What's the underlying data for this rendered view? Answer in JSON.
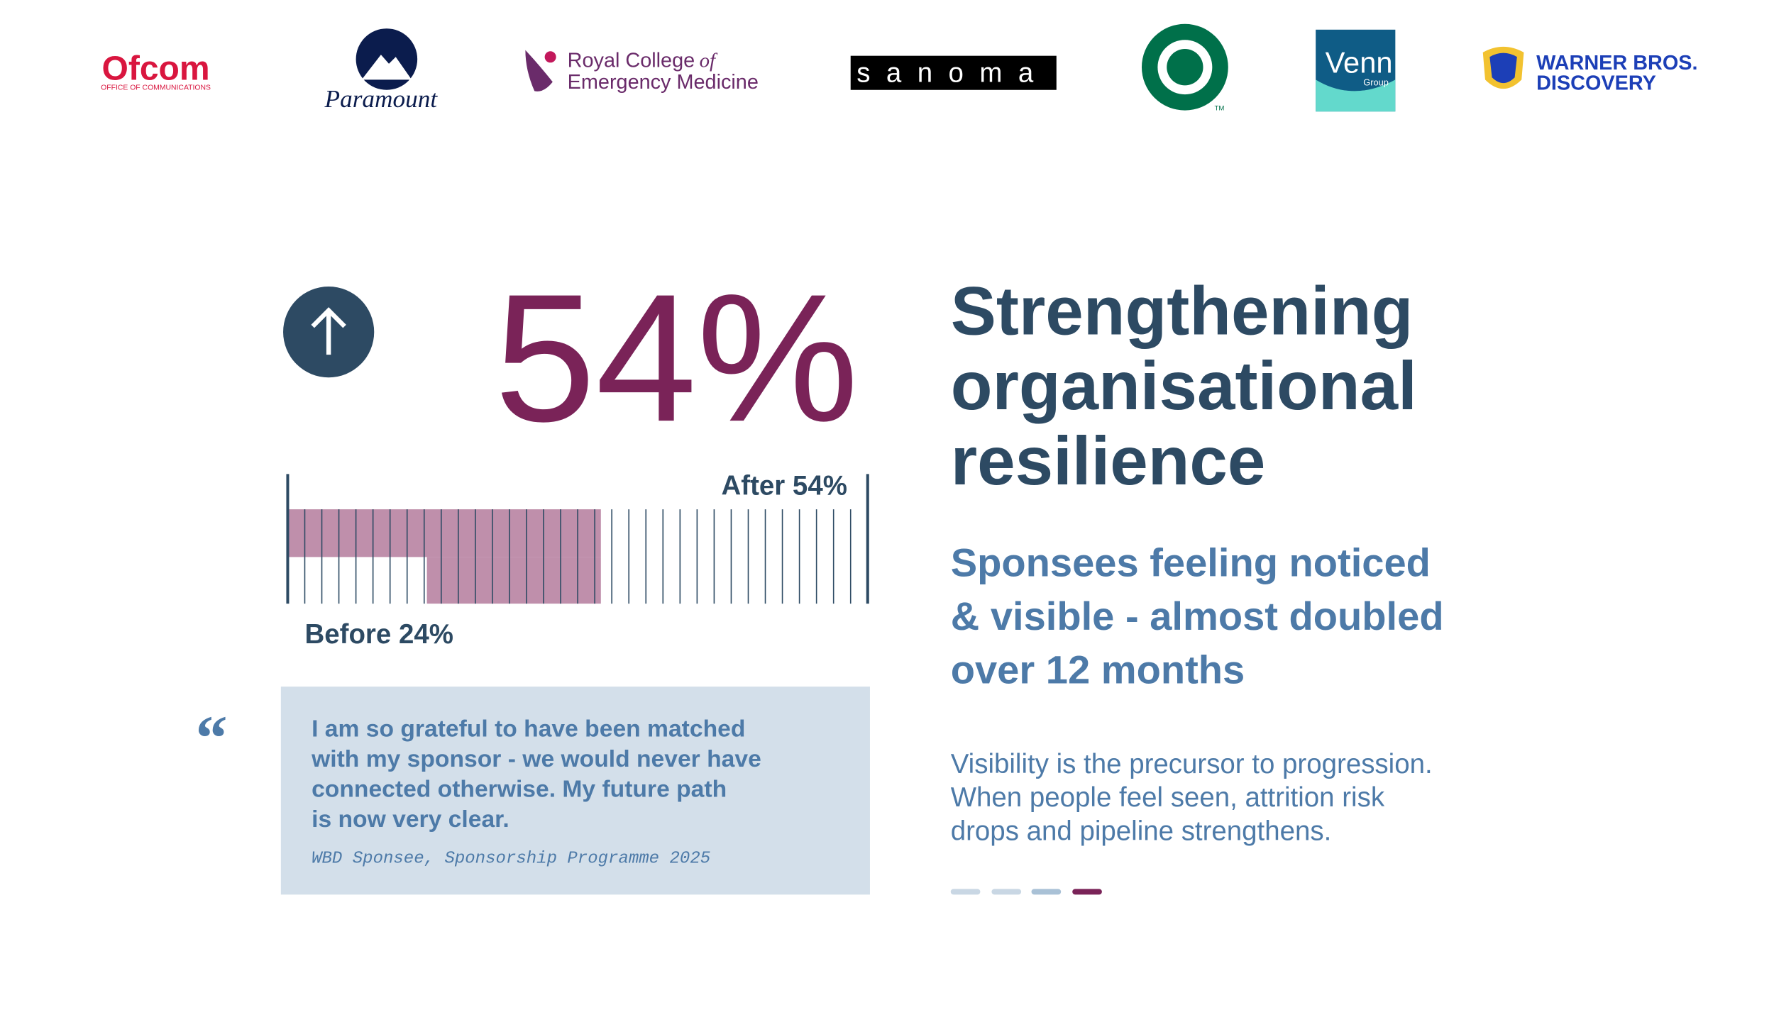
{
  "logos": {
    "ofcom": {
      "name": "Ofcom",
      "tagline": "OFFICE OF COMMUNICATIONS"
    },
    "paramount": "Paramount",
    "rcem": {
      "line1": "Royal College",
      "of": "of",
      "line2": "Emergency Medicine"
    },
    "sanoma": "sanoma",
    "starbucks": "TM",
    "venn": {
      "name": "Venn",
      "sub": "Group"
    },
    "wbd": {
      "line1": "WARNER BROS.",
      "line2": "DISCOVERY"
    }
  },
  "stat": "54%",
  "bar": {
    "xlim": [
      0,
      100
    ],
    "before": 24,
    "after": 54,
    "before_label": "Before 24%",
    "after_label": "After 54%",
    "color": "#bf8fab"
  },
  "quote": {
    "lines": [
      "I am so grateful to have been matched",
      "with my sponsor - we would never have",
      "connected otherwise. My future path",
      "is now very clear."
    ],
    "attribution": "WBD Sponsee, Sponsorship Programme 2025"
  },
  "heading": [
    "Strengthening",
    "organisational",
    "resilience"
  ],
  "subheading": [
    "Sponsees feeling noticed",
    "& visible - almost doubled",
    "over 12 months"
  ],
  "body": [
    "Visibility is the precursor to progression.",
    "When people feel seen, attrition risk",
    "drops and pipeline strengthens."
  ]
}
